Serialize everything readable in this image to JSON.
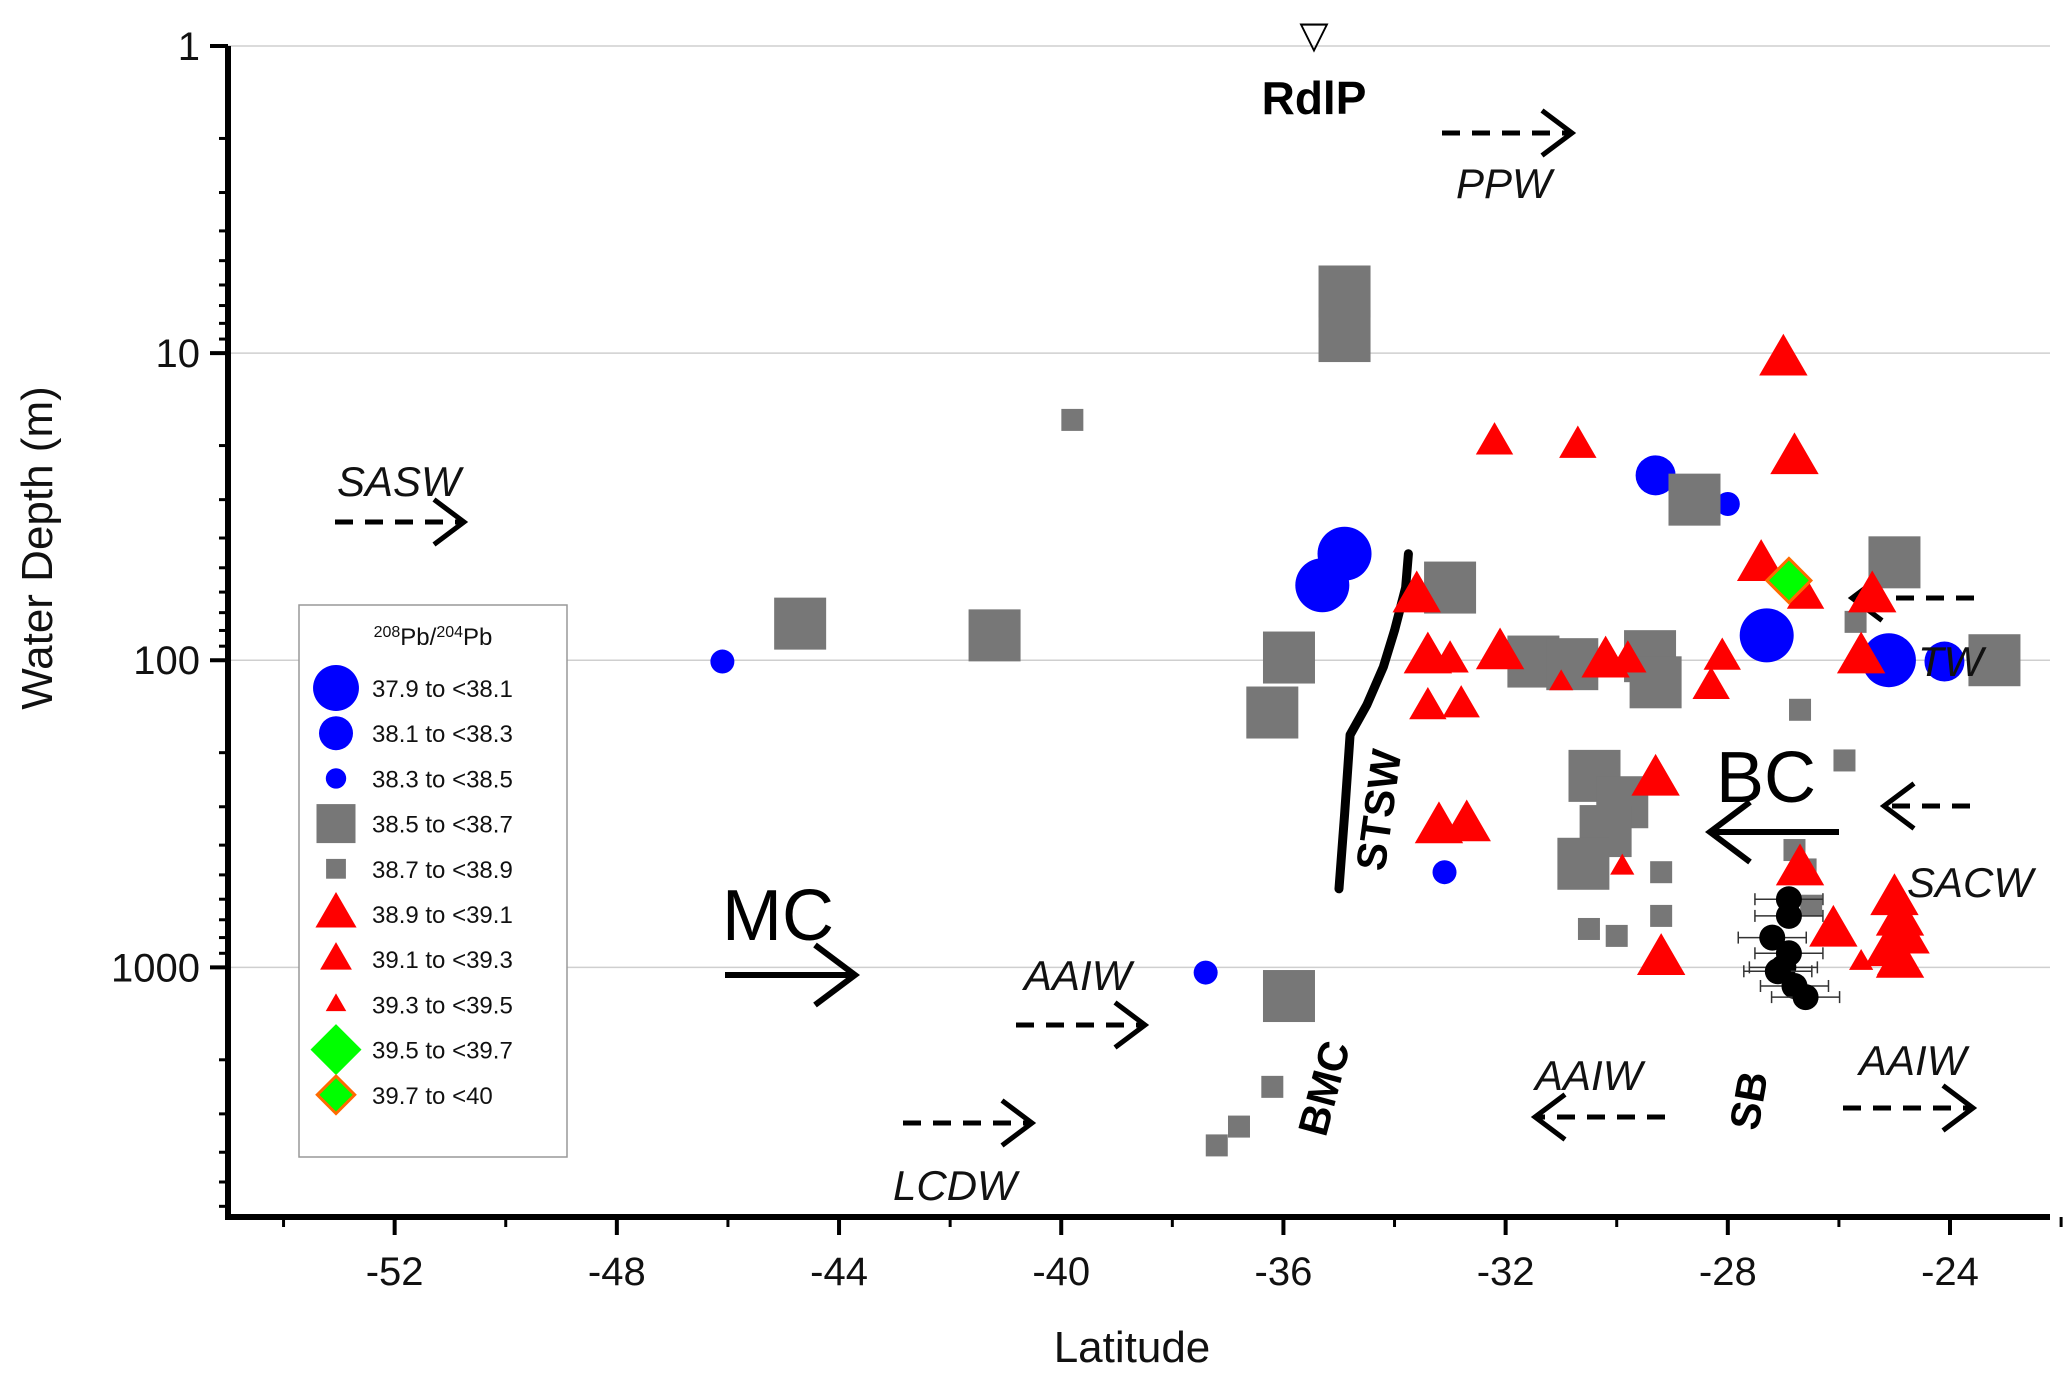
{
  "chart_data": {
    "type": "scatter",
    "title": "",
    "xlabel": "Latitude",
    "ylabel": "Water Depth (m)",
    "x_ticks": [
      -52,
      -48,
      -44,
      -40,
      -36,
      -32,
      -28,
      -24
    ],
    "y_ticks": [
      {
        "value": 1,
        "label": "1"
      },
      {
        "value": 10,
        "label": "10"
      },
      {
        "value": 100,
        "label": "100"
      },
      {
        "value": 1000,
        "label": "1000"
      }
    ],
    "xlim": [
      -55.0,
      -22.2
    ],
    "ylim": [
      1,
      6500
    ],
    "y_scale": "log",
    "grid": "horizontal major lines",
    "legend_title": "208Pb/204Pb",
    "legend_title_parts": {
      "sup1": "208",
      "base1": "Pb/",
      "sup2": "204",
      "base2": "Pb"
    },
    "legend_position": "left-middle",
    "series": [
      {
        "name": "37.9 to <38.1",
        "marker": "circle",
        "size": "large",
        "color": "#0000ff",
        "points": [
          [
            -34.9,
            45
          ],
          [
            -35.3,
            57
          ],
          [
            -27.3,
            83
          ],
          [
            -25.1,
            100
          ]
        ]
      },
      {
        "name": "38.1 to <38.3",
        "marker": "circle",
        "size": "medium",
        "color": "#0000ff",
        "points": [
          [
            -29.3,
            25
          ],
          [
            -24.1,
            101
          ]
        ]
      },
      {
        "name": "38.3 to <38.5",
        "marker": "circle",
        "size": "small",
        "color": "#0000ff",
        "points": [
          [
            -46.1,
            101
          ],
          [
            -28.0,
            31
          ],
          [
            -33.1,
            490
          ],
          [
            -37.4,
            1040
          ]
        ]
      },
      {
        "name": "38.5 to <38.7",
        "marker": "square",
        "size": "large",
        "color": "#777777",
        "points": [
          [
            -34.9,
            6.3
          ],
          [
            -34.9,
            8.8
          ],
          [
            -28.6,
            30
          ],
          [
            -25.0,
            48
          ],
          [
            -33.0,
            58
          ],
          [
            -44.7,
            76
          ],
          [
            -41.2,
            83
          ],
          [
            -35.9,
            98
          ],
          [
            -31.5,
            101
          ],
          [
            -30.8,
            103
          ],
          [
            -29.4,
            97
          ],
          [
            -29.3,
            118
          ],
          [
            -23.2,
            100
          ],
          [
            -36.2,
            148
          ],
          [
            -30.4,
            238
          ],
          [
            -29.9,
            290
          ],
          [
            -30.2,
            360
          ],
          [
            -30.6,
            460
          ],
          [
            -35.9,
            1240
          ]
        ]
      },
      {
        "name": "38.7 to <38.9",
        "marker": "square",
        "size": "small",
        "color": "#777777",
        "points": [
          [
            -39.8,
            16.5
          ],
          [
            -25.7,
            75
          ],
          [
            -26.7,
            145
          ],
          [
            -25.9,
            212
          ],
          [
            -26.8,
            415
          ],
          [
            -26.6,
            480
          ],
          [
            -29.2,
            490
          ],
          [
            -26.5,
            630
          ],
          [
            -29.2,
            680
          ],
          [
            -30.5,
            750
          ],
          [
            -30.0,
            790
          ],
          [
            -36.2,
            2450
          ],
          [
            -36.8,
            3300
          ],
          [
            -37.2,
            3800
          ]
        ]
      },
      {
        "name": "38.9 to <39.1",
        "marker": "triangle",
        "size": "large",
        "color": "#ff0000",
        "points": [
          [
            -27.0,
            10.5
          ],
          [
            -26.8,
            22
          ],
          [
            -27.4,
            49
          ],
          [
            -33.6,
            62
          ],
          [
            -25.4,
            62
          ],
          [
            -33.4,
            98
          ],
          [
            -25.6,
            98
          ],
          [
            -32.1,
            95
          ],
          [
            -30.2,
            101
          ],
          [
            -29.3,
            245
          ],
          [
            -33.2,
            350
          ],
          [
            -32.7,
            345
          ],
          [
            -26.7,
            480
          ],
          [
            -26.1,
            760
          ],
          [
            -25.0,
            600
          ],
          [
            -24.9,
            700
          ],
          [
            -24.8,
            800
          ],
          [
            -25.1,
            880
          ],
          [
            -24.9,
            960
          ],
          [
            -29.2,
            940
          ]
        ]
      },
      {
        "name": "39.1 to <39.3",
        "marker": "triangle",
        "size": "medium",
        "color": "#ff0000",
        "points": [
          [
            -32.2,
            19.5
          ],
          [
            -30.7,
            20
          ],
          [
            -26.6,
            62
          ],
          [
            -33.0,
            100
          ],
          [
            -29.8,
            100
          ],
          [
            -28.1,
            98
          ],
          [
            -32.8,
            140
          ],
          [
            -28.3,
            122
          ],
          [
            -33.4,
            142
          ]
        ]
      },
      {
        "name": "39.3 to <39.5",
        "marker": "triangle",
        "size": "small",
        "color": "#ff0000",
        "points": [
          [
            -31.0,
            118
          ],
          [
            -29.9,
            470
          ],
          [
            -25.1,
            1000
          ],
          [
            -25.6,
            960
          ]
        ]
      },
      {
        "name": "39.5 to <39.7",
        "marker": "diamond",
        "size": "large",
        "color": "#00ff00",
        "points": []
      },
      {
        "name": "39.7 to <40",
        "marker": "diamond",
        "size": "small",
        "color": "#00ff00",
        "edge": "#ff6a00",
        "points": [
          [
            -26.9,
            55
          ]
        ]
      }
    ],
    "sb_points": [
      [
        -26.9,
        600
      ],
      [
        -26.9,
        680
      ],
      [
        -27.2,
        800
      ],
      [
        -26.9,
        900
      ],
      [
        -27.0,
        1000
      ],
      [
        -27.1,
        1030
      ],
      [
        -26.8,
        1150
      ],
      [
        -26.6,
        1250
      ]
    ],
    "annotations": {
      "RdlP": {
        "label": "RdlP",
        "marker": "▽",
        "x": -34.9
      },
      "water_masses": {
        "PPW": "PPW",
        "SASW": "SASW",
        "TW": "TW",
        "SACW": "SACW",
        "AAIW_left": "AAIW",
        "AAIW_mid": "AAIW",
        "AAIW_right": "AAIW",
        "LCDW": "LCDW"
      },
      "currents": {
        "MC": "MC",
        "BC": "BC"
      },
      "fronts": {
        "STSW": "STSW",
        "BMC": "BMC",
        "SB": "SB"
      },
      "stsw_line": [
        [
          -33.75,
          45
        ],
        [
          -33.8,
          58
        ],
        [
          -34.0,
          80
        ],
        [
          -34.2,
          105
        ],
        [
          -34.5,
          140
        ],
        [
          -34.8,
          175
        ],
        [
          -34.9,
          320
        ],
        [
          -35.0,
          555
        ]
      ]
    }
  }
}
